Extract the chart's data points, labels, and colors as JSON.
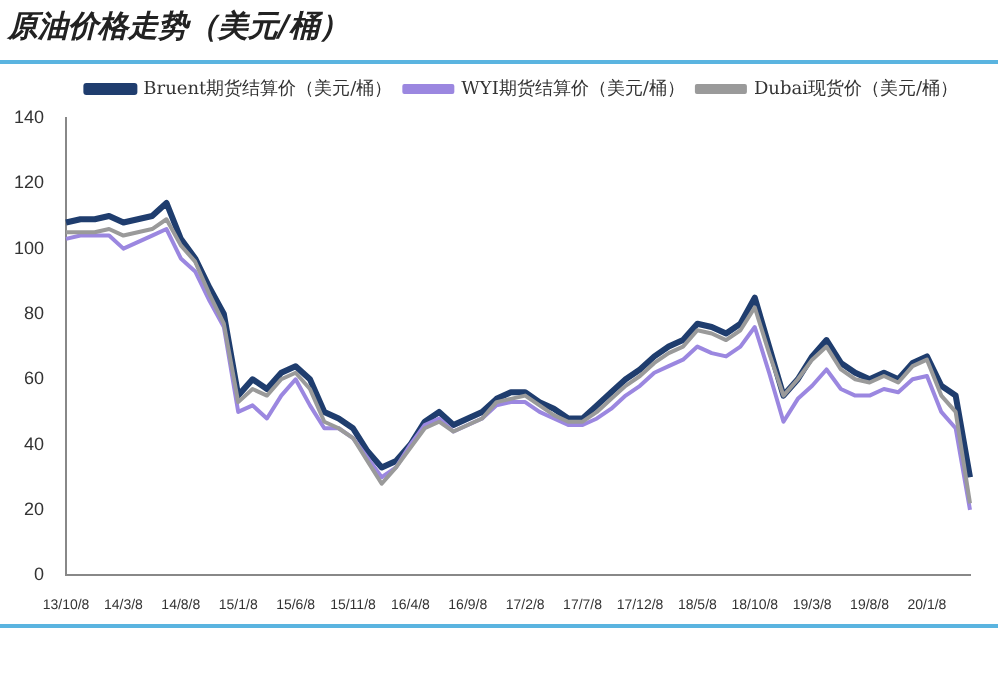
{
  "chart_data": {
    "type": "line",
    "title": "原油价格走势（美元/桶）",
    "categories": [
      "13/10/8",
      null,
      null,
      null,
      "14/3/8",
      null,
      null,
      null,
      "14/8/8",
      null,
      null,
      null,
      "15/1/8",
      null,
      null,
      null,
      "15/6/8",
      null,
      null,
      null,
      "15/11/8",
      null,
      null,
      null,
      "16/4/8",
      null,
      null,
      null,
      "16/9/8",
      null,
      null,
      null,
      "17/2/8",
      null,
      null,
      null,
      "17/7/8",
      null,
      null,
      null,
      "17/12/8",
      null,
      null,
      null,
      "18/5/8",
      null,
      null,
      null,
      "18/10/8",
      null,
      null,
      null,
      "19/3/8",
      null,
      null,
      null,
      "19/8/8",
      null,
      null,
      null,
      "20/1/8",
      null,
      null,
      null
    ],
    "series": [
      {
        "name": "Bruent期货结算价（美元/桶）",
        "color": "#1f3d6e",
        "values": [
          108,
          109,
          109,
          110,
          108,
          109,
          110,
          114,
          103,
          97,
          88,
          80,
          55,
          60,
          57,
          62,
          64,
          60,
          50,
          48,
          45,
          38,
          33,
          35,
          40,
          47,
          50,
          46,
          48,
          50,
          54,
          56,
          56,
          53,
          51,
          48,
          48,
          52,
          56,
          60,
          63,
          67,
          70,
          72,
          77,
          76,
          74,
          77,
          85,
          70,
          55,
          60,
          67,
          72,
          65,
          62,
          60,
          62,
          60,
          65,
          67,
          58,
          55,
          30
        ]
      },
      {
        "name": "WYI期货结算价（美元/桶）",
        "color": "#9b87e0",
        "values": [
          103,
          104,
          104,
          104,
          100,
          102,
          104,
          106,
          97,
          93,
          84,
          76,
          50,
          52,
          48,
          55,
          60,
          52,
          45,
          45,
          42,
          36,
          30,
          33,
          40,
          46,
          48,
          44,
          46,
          48,
          52,
          53,
          53,
          50,
          48,
          46,
          46,
          48,
          51,
          55,
          58,
          62,
          64,
          66,
          70,
          68,
          67,
          70,
          76,
          62,
          47,
          54,
          58,
          63,
          57,
          55,
          55,
          57,
          56,
          60,
          61,
          50,
          45,
          20
        ]
      },
      {
        "name": "Dubai现货价（美元/桶）",
        "color": "#9a9a9a",
        "values": [
          105,
          105,
          105,
          106,
          104,
          105,
          106,
          109,
          101,
          96,
          86,
          77,
          53,
          57,
          55,
          60,
          62,
          57,
          47,
          45,
          42,
          35,
          28,
          33,
          39,
          45,
          47,
          44,
          46,
          48,
          53,
          54,
          55,
          52,
          49,
          47,
          47,
          50,
          54,
          58,
          61,
          65,
          68,
          70,
          75,
          74,
          72,
          75,
          82,
          68,
          55,
          60,
          66,
          70,
          63,
          60,
          59,
          61,
          59,
          64,
          66,
          55,
          50,
          22
        ]
      }
    ],
    "ylim": [
      0,
      140
    ],
    "yticks": [
      0,
      20,
      40,
      60,
      80,
      100,
      120,
      140
    ],
    "grid": false,
    "legend": "top right",
    "marker": "none",
    "line_style": "solid"
  }
}
